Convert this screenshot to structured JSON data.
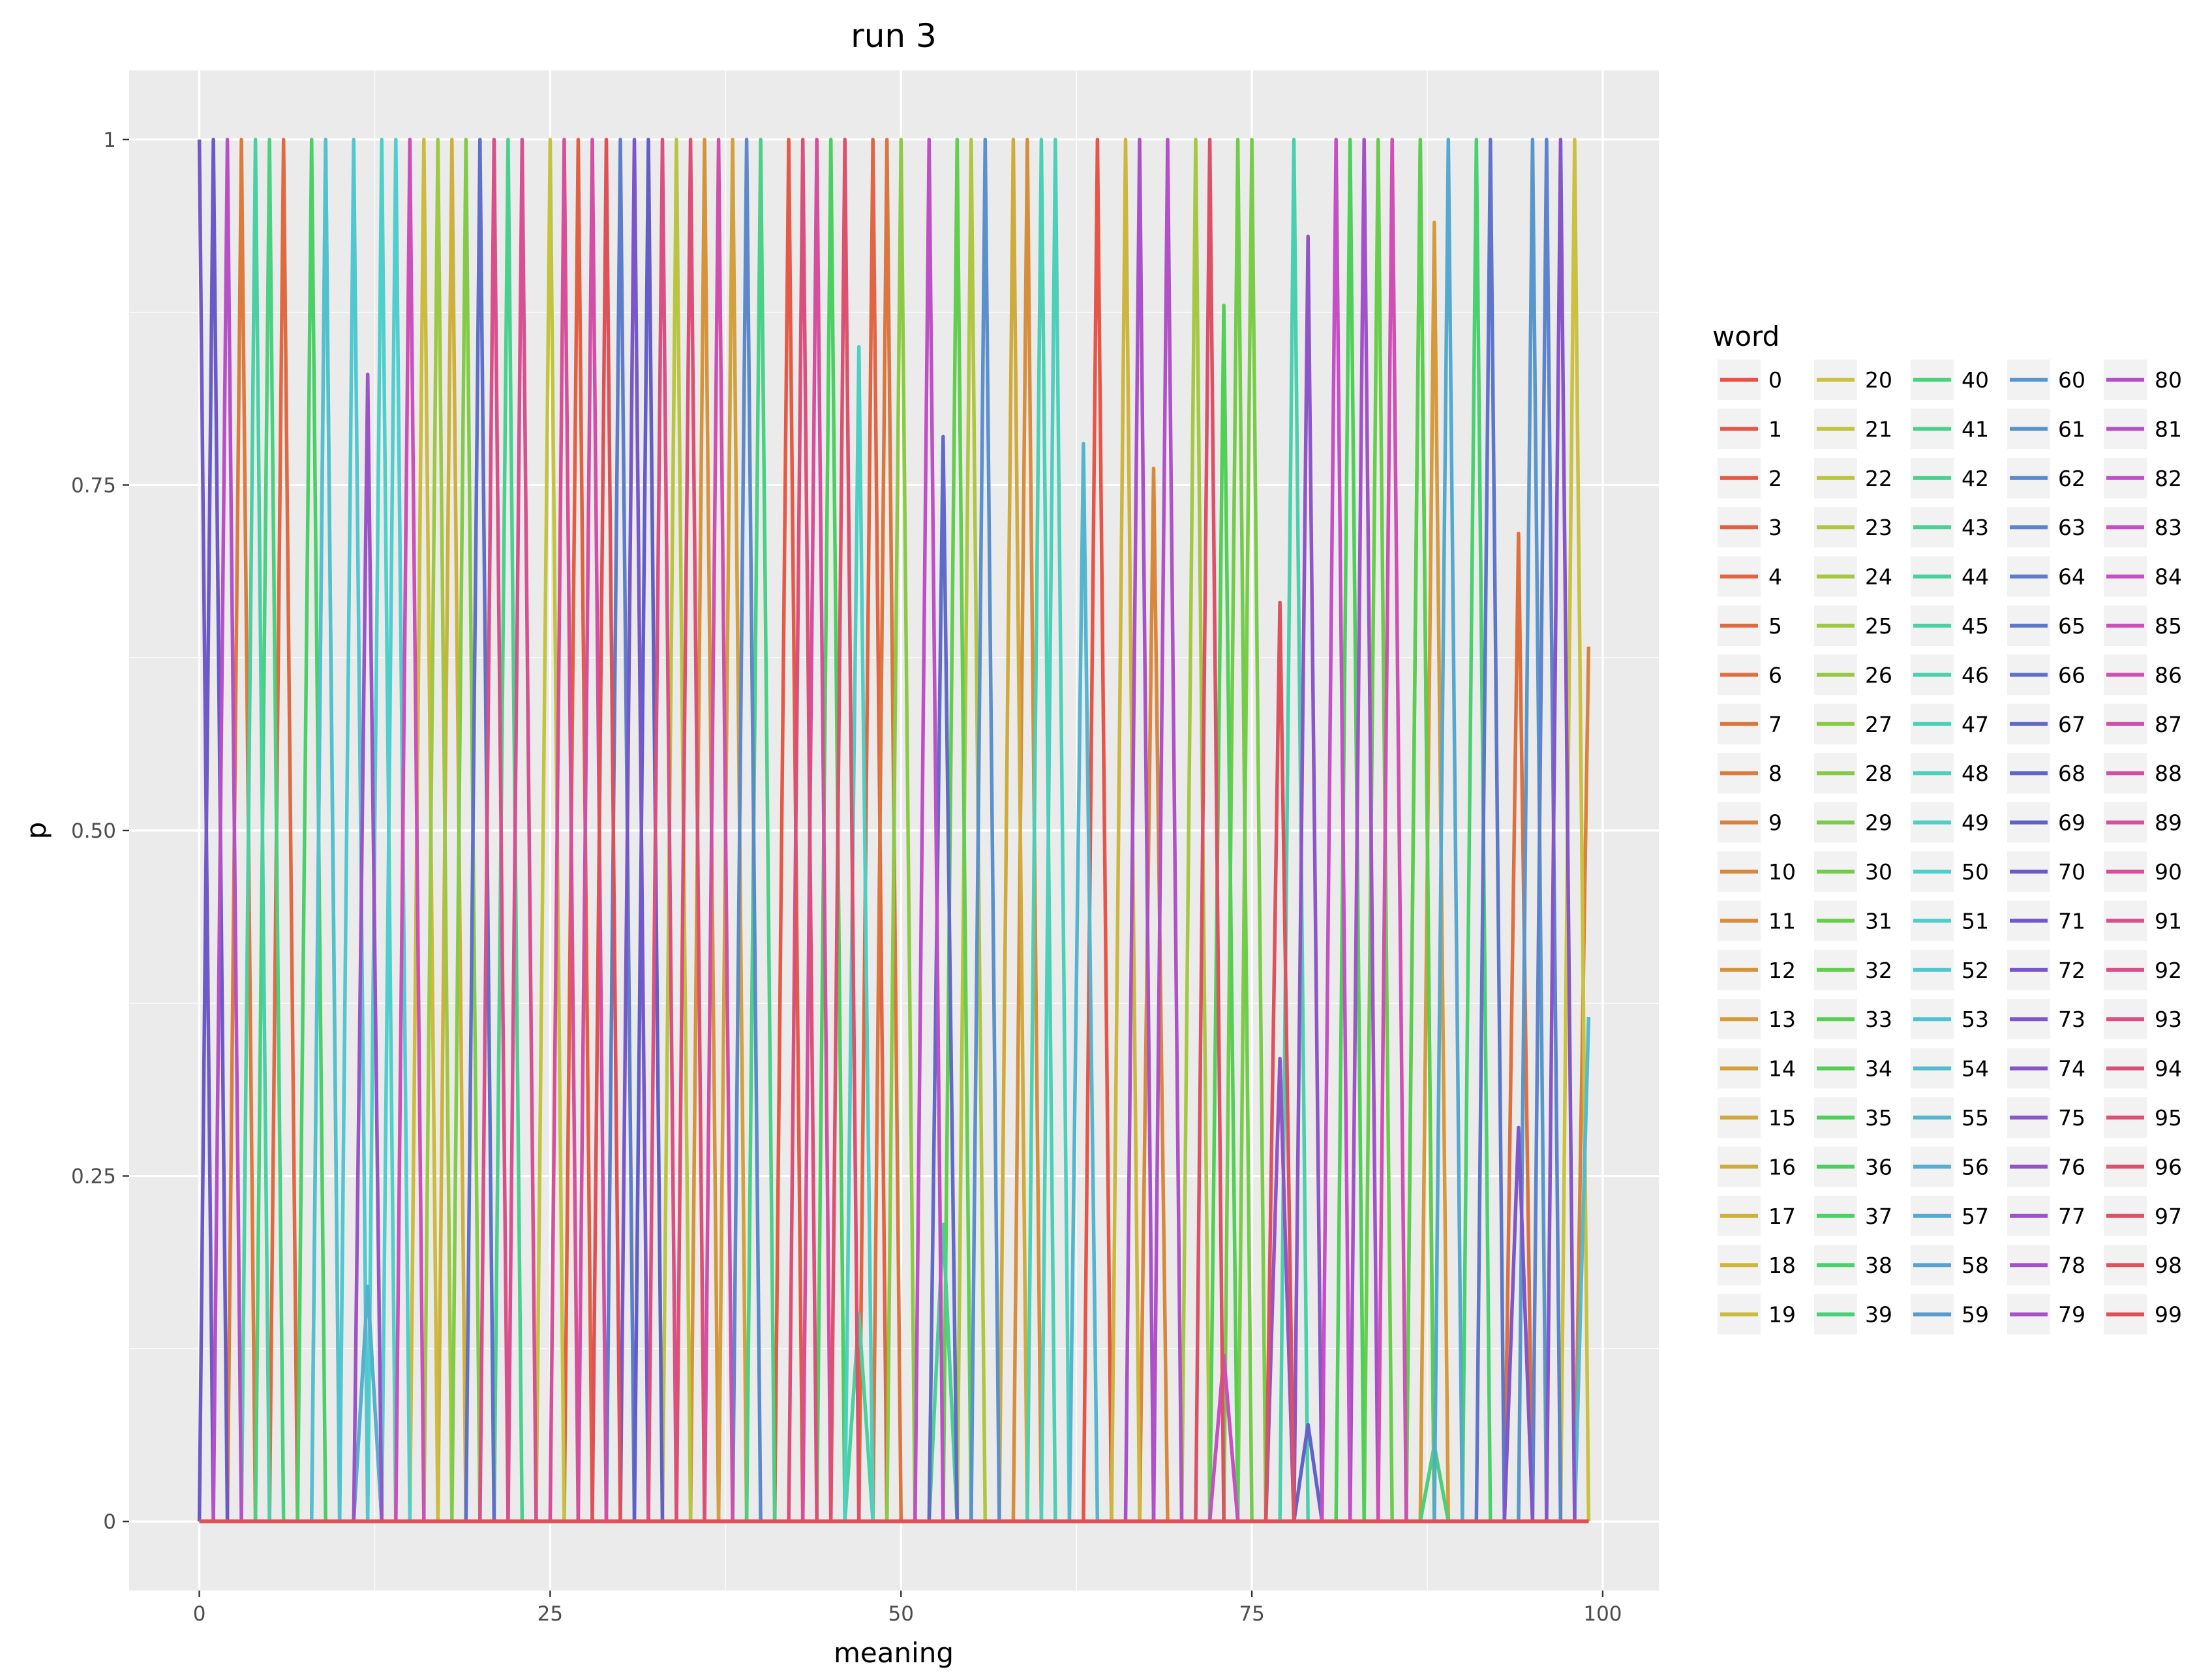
{
  "chart_data": {
    "type": "line",
    "title": "run 3",
    "xlabel": "meaning",
    "ylabel": "p",
    "xlim": [
      -5,
      104
    ],
    "ylim": [
      -0.05,
      1.05
    ],
    "x_ticks": [
      {
        "value": 0,
        "label": "0"
      },
      {
        "value": 25,
        "label": "25"
      },
      {
        "value": 50,
        "label": "50"
      },
      {
        "value": 75,
        "label": "75"
      },
      {
        "value": 100,
        "label": "100"
      }
    ],
    "y_ticks": [
      {
        "value": 0,
        "label": "0"
      },
      {
        "value": 0.25,
        "label": "0.25"
      },
      {
        "value": 0.5,
        "label": "0.50"
      },
      {
        "value": 0.75,
        "label": "0.75"
      },
      {
        "value": 1,
        "label": "1"
      }
    ],
    "grid": true,
    "legend": {
      "title": "word",
      "placement": "right",
      "columns": 5,
      "rows": 20
    },
    "x": [
      0,
      1,
      2,
      3,
      4,
      5,
      6,
      7,
      8,
      9,
      10,
      11,
      12,
      13,
      14,
      15,
      16,
      17,
      18,
      19,
      20,
      21,
      22,
      23,
      24,
      25,
      26,
      27,
      28,
      29,
      30,
      31,
      32,
      33,
      34,
      35,
      36,
      37,
      38,
      39,
      40,
      41,
      42,
      43,
      44,
      45,
      46,
      47,
      48,
      49,
      50,
      51,
      52,
      53,
      54,
      55,
      56,
      57,
      58,
      59,
      60,
      61,
      62,
      63,
      64,
      65,
      66,
      67,
      68,
      69,
      70,
      71,
      72,
      73,
      74,
      75,
      76,
      77,
      78,
      79,
      80,
      81,
      82,
      83,
      84,
      85,
      86,
      87,
      88,
      89,
      90,
      91,
      92,
      93,
      94,
      95,
      96,
      97,
      98,
      99
    ],
    "series": [
      {
        "name": "0",
        "color": "#e7514a",
        "peaks": []
      },
      {
        "name": "1",
        "color": "#e65548",
        "peaks": [
          [
            64,
            1.0
          ]
        ]
      },
      {
        "name": "2",
        "color": "#e45a46",
        "peaks": [
          [
            42,
            1.0
          ]
        ]
      },
      {
        "name": "3",
        "color": "#e35f44",
        "peaks": [
          [
            27,
            1.0
          ]
        ]
      },
      {
        "name": "4",
        "color": "#e16542",
        "peaks": [
          [
            48,
            1.0
          ]
        ]
      },
      {
        "name": "5",
        "color": "#df6a41",
        "peaks": [
          [
            6,
            1.0
          ]
        ]
      },
      {
        "name": "6",
        "color": "#de7040",
        "peaks": [
          [
            94,
            0.715
          ]
        ]
      },
      {
        "name": "7",
        "color": "#dc763f",
        "peaks": [
          [
            49,
            1.0
          ]
        ]
      },
      {
        "name": "8",
        "color": "#db7c3e",
        "peaks": [
          [
            3,
            1.0
          ]
        ]
      },
      {
        "name": "9",
        "color": "#d9823d",
        "peaks": [
          [
            99,
            0.633
          ]
        ]
      },
      {
        "name": "10",
        "color": "#d8883c",
        "peaks": [
          [
            68,
            0.762
          ]
        ]
      },
      {
        "name": "11",
        "color": "#d68e3c",
        "peaks": [
          [
            59,
            1.0
          ]
        ]
      },
      {
        "name": "12",
        "color": "#d5943c",
        "peaks": [
          [
            36,
            1.0
          ]
        ]
      },
      {
        "name": "13",
        "color": "#d49a3c",
        "peaks": [
          [
            88,
            0.94
          ]
        ]
      },
      {
        "name": "14",
        "color": "#d2a03c",
        "peaks": [
          [
            38,
            1.0
          ]
        ]
      },
      {
        "name": "15",
        "color": "#d1a63c",
        "peaks": [
          [
            87,
            1.0
          ]
        ]
      },
      {
        "name": "16",
        "color": "#cfab3c",
        "peaks": [
          [
            58,
            1.0
          ]
        ]
      },
      {
        "name": "17",
        "color": "#ceb13d",
        "peaks": [
          [
            18,
            1.0
          ]
        ]
      },
      {
        "name": "18",
        "color": "#cdb63d",
        "peaks": [
          [
            66,
            1.0
          ]
        ]
      },
      {
        "name": "19",
        "color": "#cbbb3e",
        "peaks": [
          [
            16,
            1.0
          ]
        ]
      },
      {
        "name": "20",
        "color": "#c9c13f",
        "peaks": [
          [
            98,
            1.0
          ]
        ]
      },
      {
        "name": "21",
        "color": "#c2c43f",
        "peaks": [
          [
            25,
            1.0
          ]
        ]
      },
      {
        "name": "22",
        "color": "#b9c540",
        "peaks": [
          [
            34,
            1.0
          ]
        ]
      },
      {
        "name": "23",
        "color": "#b0c641",
        "peaks": [
          [
            55,
            1.0
          ]
        ]
      },
      {
        "name": "24",
        "color": "#a7c742",
        "peaks": [
          [
            71,
            1.0
          ]
        ]
      },
      {
        "name": "25",
        "color": "#9ec843",
        "peaks": [
          [
            17,
            1.0
          ]
        ]
      },
      {
        "name": "26",
        "color": "#95c944",
        "peaks": [
          [
            9,
            1.0
          ]
        ]
      },
      {
        "name": "27",
        "color": "#8cca45",
        "peaks": [
          [
            50,
            1.0
          ]
        ]
      },
      {
        "name": "28",
        "color": "#83cb47",
        "peaks": [
          [
            19,
            1.0
          ]
        ]
      },
      {
        "name": "29",
        "color": "#7acc48",
        "peaks": [
          [
            75,
            1.0
          ]
        ]
      },
      {
        "name": "30",
        "color": "#72cc4a",
        "peaks": [
          [
            74,
            1.0
          ]
        ]
      },
      {
        "name": "31",
        "color": "#69cd4c",
        "peaks": [
          [
            84,
            1.0
          ]
        ]
      },
      {
        "name": "32",
        "color": "#61ce4e",
        "peaks": [
          [
            54,
            1.0
          ]
        ]
      },
      {
        "name": "33",
        "color": "#5ace51",
        "peaks": [
          [
            87,
            1.0
          ]
        ]
      },
      {
        "name": "34",
        "color": "#52cf54",
        "peaks": [
          [
            73,
            0.88
          ]
        ]
      },
      {
        "name": "35",
        "color": "#4ecf5a",
        "peaks": [
          [
            82,
            1.0
          ]
        ]
      },
      {
        "name": "36",
        "color": "#4ccf61",
        "peaks": [
          [
            45,
            1.0
          ]
        ]
      },
      {
        "name": "37",
        "color": "#4bd069",
        "peaks": [
          [
            8,
            1.0
          ]
        ]
      },
      {
        "name": "38",
        "color": "#4bd070",
        "peaks": [
          [
            91,
            1.0
          ]
        ]
      },
      {
        "name": "39",
        "color": "#4ad078",
        "peaks": [
          [
            88,
            0.055
          ]
        ]
      },
      {
        "name": "40",
        "color": "#4ad07f",
        "peaks": [
          [
            5,
            1.0
          ]
        ]
      },
      {
        "name": "41",
        "color": "#4ad087",
        "peaks": [
          [
            40,
            1.0
          ]
        ]
      },
      {
        "name": "42",
        "color": "#4ad08e",
        "peaks": [
          [
            22,
            1.0
          ]
        ]
      },
      {
        "name": "43",
        "color": "#4ad096",
        "peaks": [
          [
            53,
            0.215
          ]
        ]
      },
      {
        "name": "44",
        "color": "#4ad09d",
        "peaks": [
          [
            47,
            0.15
          ]
        ]
      },
      {
        "name": "45",
        "color": "#4bd0a5",
        "peaks": [
          [
            4,
            1.0
          ]
        ]
      },
      {
        "name": "46",
        "color": "#4bd0ac",
        "peaks": [
          [
            78,
            1.0
          ]
        ]
      },
      {
        "name": "47",
        "color": "#4cd0b4",
        "peaks": [
          [
            60,
            1.0
          ]
        ]
      },
      {
        "name": "48",
        "color": "#4dd0bb",
        "peaks": [
          [
            61,
            1.0
          ]
        ]
      },
      {
        "name": "49",
        "color": "#4ecfc3",
        "peaks": [
          [
            47,
            0.85
          ]
        ]
      },
      {
        "name": "50",
        "color": "#4fcfca",
        "peaks": [
          [
            13,
            1.0
          ]
        ]
      },
      {
        "name": "51",
        "color": "#50cdcf",
        "peaks": [
          [
            14,
            1.0
          ]
        ]
      },
      {
        "name": "52",
        "color": "#51c7cf",
        "peaks": [
          [
            11,
            1.0
          ]
        ]
      },
      {
        "name": "53",
        "color": "#52c1cf",
        "peaks": [
          [
            9,
            1.0
          ]
        ]
      },
      {
        "name": "54",
        "color": "#53bbcf",
        "peaks": [
          [
            99,
            0.365
          ]
        ]
      },
      {
        "name": "55",
        "color": "#54b5ce",
        "peaks": [
          [
            63,
            0.78
          ]
        ]
      },
      {
        "name": "56",
        "color": "#55afce",
        "peaks": [
          [
            12,
            0.17
          ]
        ]
      },
      {
        "name": "57",
        "color": "#56a9ce",
        "peaks": [
          [
            89,
            1.0
          ]
        ]
      },
      {
        "name": "58",
        "color": "#57a3cd",
        "peaks": []
      },
      {
        "name": "59",
        "color": "#589ccd",
        "peaks": []
      },
      {
        "name": "60",
        "color": "#5996cc",
        "peaks": [
          [
            95,
            1.0
          ]
        ]
      },
      {
        "name": "61",
        "color": "#5a90cc",
        "peaks": [
          [
            56,
            1.0
          ]
        ]
      },
      {
        "name": "62",
        "color": "#5b89cb",
        "peaks": [
          [
            39,
            1.0
          ]
        ]
      },
      {
        "name": "63",
        "color": "#5c83cb",
        "peaks": [
          [
            96,
            1.0
          ]
        ]
      },
      {
        "name": "64",
        "color": "#5d7dca",
        "peaks": [
          [
            30,
            1.0
          ]
        ]
      },
      {
        "name": "65",
        "color": "#5e76ca",
        "peaks": [
          [
            92,
            1.0
          ]
        ]
      },
      {
        "name": "66",
        "color": "#5f70c9",
        "peaks": [
          [
            20,
            1.0
          ]
        ]
      },
      {
        "name": "67",
        "color": "#606ac9",
        "peaks": [
          [
            53,
            0.785
          ]
        ]
      },
      {
        "name": "68",
        "color": "#6163c8",
        "peaks": [
          [
            79,
            0.07
          ]
        ]
      },
      {
        "name": "69",
        "color": "#635dc8",
        "peaks": [
          [
            32,
            1.0
          ]
        ]
      },
      {
        "name": "70",
        "color": "#6a5ac8",
        "peaks": [
          [
            1,
            1.0
          ]
        ]
      },
      {
        "name": "71",
        "color": "#7159c8",
        "peaks": [
          [
            0,
            1.0
          ]
        ]
      },
      {
        "name": "72",
        "color": "#7858c8",
        "peaks": [
          [
            31,
            1.0
          ]
        ]
      },
      {
        "name": "73",
        "color": "#7f57c8",
        "peaks": [
          [
            94,
            0.285
          ]
        ]
      },
      {
        "name": "74",
        "color": "#8656c8",
        "peaks": [
          [
            97,
            1.0
          ]
        ]
      },
      {
        "name": "75",
        "color": "#8d55c8",
        "peaks": [
          [
            79,
            0.93
          ]
        ]
      },
      {
        "name": "76",
        "color": "#9454c8",
        "peaks": [
          [
            77,
            0.335
          ]
        ]
      },
      {
        "name": "77",
        "color": "#9b53c8",
        "peaks": [
          [
            12,
            0.83
          ]
        ]
      },
      {
        "name": "78",
        "color": "#a252c8",
        "peaks": [
          [
            83,
            1.0
          ]
        ]
      },
      {
        "name": "79",
        "color": "#a951c8",
        "peaks": [
          [
            67,
            1.0
          ]
        ]
      },
      {
        "name": "80",
        "color": "#b051c8",
        "peaks": [
          [
            69,
            1.0
          ]
        ]
      },
      {
        "name": "81",
        "color": "#b750c8",
        "peaks": [
          [
            2,
            1.0
          ]
        ]
      },
      {
        "name": "82",
        "color": "#be4fc7",
        "peaks": [
          [
            52,
            1.0
          ]
        ]
      },
      {
        "name": "83",
        "color": "#c54fc6",
        "peaks": [
          [
            81,
            1.0
          ]
        ]
      },
      {
        "name": "84",
        "color": "#c94fc1",
        "peaks": [
          [
            73,
            0.12
          ]
        ]
      },
      {
        "name": "85",
        "color": "#cc4fba",
        "peaks": [
          [
            15,
            1.0
          ]
        ]
      },
      {
        "name": "86",
        "color": "#cf4fb3",
        "peaks": [
          [
            85,
            1.0
          ]
        ]
      },
      {
        "name": "87",
        "color": "#d14fac",
        "peaks": [
          [
            37,
            1.0
          ]
        ]
      },
      {
        "name": "88",
        "color": "#d34fa5",
        "peaks": [
          [
            28,
            1.0
          ]
        ]
      },
      {
        "name": "89",
        "color": "#d54f9e",
        "peaks": [
          [
            44,
            1.0
          ]
        ]
      },
      {
        "name": "90",
        "color": "#d64f97",
        "peaks": [
          [
            26,
            1.0
          ]
        ]
      },
      {
        "name": "91",
        "color": "#d75090",
        "peaks": [
          [
            23,
            1.0
          ]
        ]
      },
      {
        "name": "92",
        "color": "#d85089",
        "peaks": [
          [
            21,
            1.0
          ]
        ]
      },
      {
        "name": "93",
        "color": "#d95082",
        "peaks": [
          [
            33,
            1.0
          ]
        ]
      },
      {
        "name": "94",
        "color": "#da507b",
        "peaks": [
          [
            43,
            1.0
          ]
        ]
      },
      {
        "name": "95",
        "color": "#db5074",
        "peaks": [
          [
            35,
            1.0
          ]
        ]
      },
      {
        "name": "96",
        "color": "#dc516d",
        "peaks": [
          [
            46,
            1.0
          ]
        ]
      },
      {
        "name": "97",
        "color": "#dd5166",
        "peaks": [
          [
            72,
            1.0
          ]
        ]
      },
      {
        "name": "98",
        "color": "#de515f",
        "peaks": [
          [
            77,
            0.665
          ]
        ]
      },
      {
        "name": "99",
        "color": "#df5158",
        "peaks": [
          [
            29,
            1.0
          ]
        ]
      }
    ]
  }
}
